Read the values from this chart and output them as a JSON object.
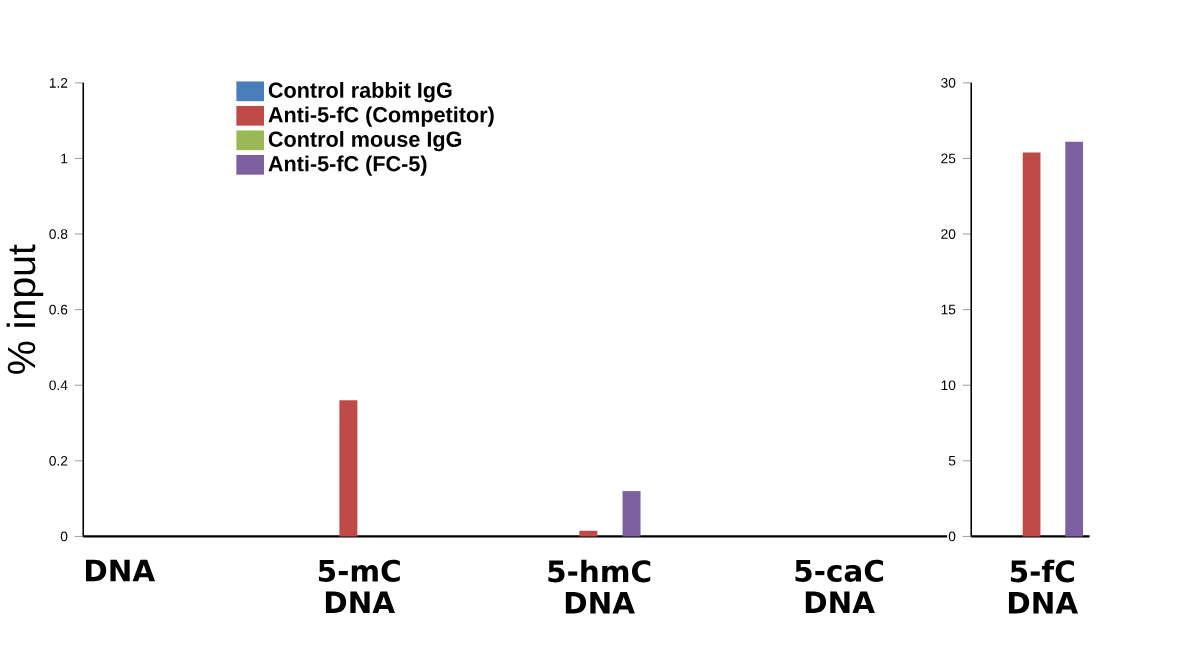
{
  "chart_data": [
    {
      "type": "bar",
      "ylabel": "% input",
      "categories": [
        "DNA",
        "5-mC DNA",
        "5-hmC DNA",
        "5-caC DNA"
      ],
      "ylim": [
        0,
        1.2
      ],
      "yticks": [
        0,
        0.2,
        0.4,
        0.6,
        0.8,
        1,
        1.2
      ],
      "legend": "top left",
      "series": [
        {
          "name": "Control rabbit IgG",
          "color": "#4a7ebb",
          "values": [
            0,
            0,
            0,
            0
          ]
        },
        {
          "name": "Anti-5-fC (Competitor)",
          "color": "#be4b48",
          "values": [
            0,
            0.36,
            0.015,
            0
          ]
        },
        {
          "name": "Control mouse IgG",
          "color": "#98b954",
          "values": [
            0,
            0,
            0,
            0
          ]
        },
        {
          "name": "Anti-5-fC (FC-5)",
          "color": "#7d60a0",
          "values": [
            0,
            0,
            0.12,
            0
          ]
        }
      ]
    },
    {
      "type": "bar",
      "categories": [
        "5-fC DNA"
      ],
      "ylim": [
        0,
        30
      ],
      "yticks": [
        0,
        5,
        10,
        15,
        20,
        25,
        30
      ],
      "series": [
        {
          "color": "#4a7ebb",
          "values": [
            0
          ]
        },
        {
          "color": "#be4b48",
          "values": [
            25.4
          ]
        },
        {
          "color": "#98b954",
          "values": [
            0
          ]
        },
        {
          "color": "#7d60a0",
          "values": [
            26.1
          ]
        }
      ]
    }
  ]
}
